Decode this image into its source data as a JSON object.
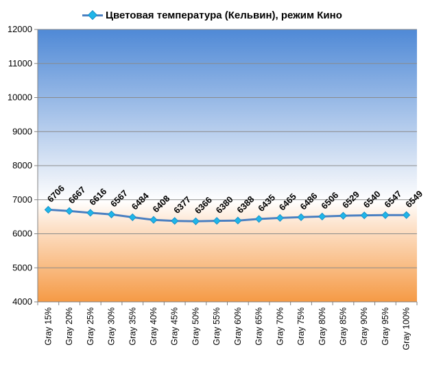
{
  "chart_data": {
    "type": "line",
    "title": "",
    "xlabel": "",
    "ylabel": "",
    "ylim": [
      4000,
      12000
    ],
    "yticks": [
      4000,
      5000,
      6000,
      7000,
      8000,
      9000,
      10000,
      11000,
      12000
    ],
    "grid": true,
    "legend_placement": "top",
    "categories": [
      "Gray 15%",
      "Gray 20%",
      "Gray 25%",
      "Gray 30%",
      "Gray 35%",
      "Gray 40%",
      "Gray 45%",
      "Gray 50%",
      "Gray 55%",
      "Gray 60%",
      "Gray 65%",
      "Gray 70%",
      "Gray 75%",
      "Gray 80%",
      "Gray 85%",
      "Gray 90%",
      "Gray 95%",
      "Gray 100%"
    ],
    "series": [
      {
        "name": "Цветовая температура (Кельвин), режим Кино",
        "color": "#4a7fc1",
        "marker_color": "#1fb6e9",
        "values": [
          6706,
          6667,
          6616,
          6567,
          6484,
          6408,
          6377,
          6366,
          6380,
          6388,
          6435,
          6465,
          6486,
          6506,
          6529,
          6540,
          6547,
          6549
        ]
      }
    ],
    "background_top_color": "#4f89d6",
    "background_mid_color": "#ffffff",
    "background_bottom_color": "#f59a45"
  }
}
